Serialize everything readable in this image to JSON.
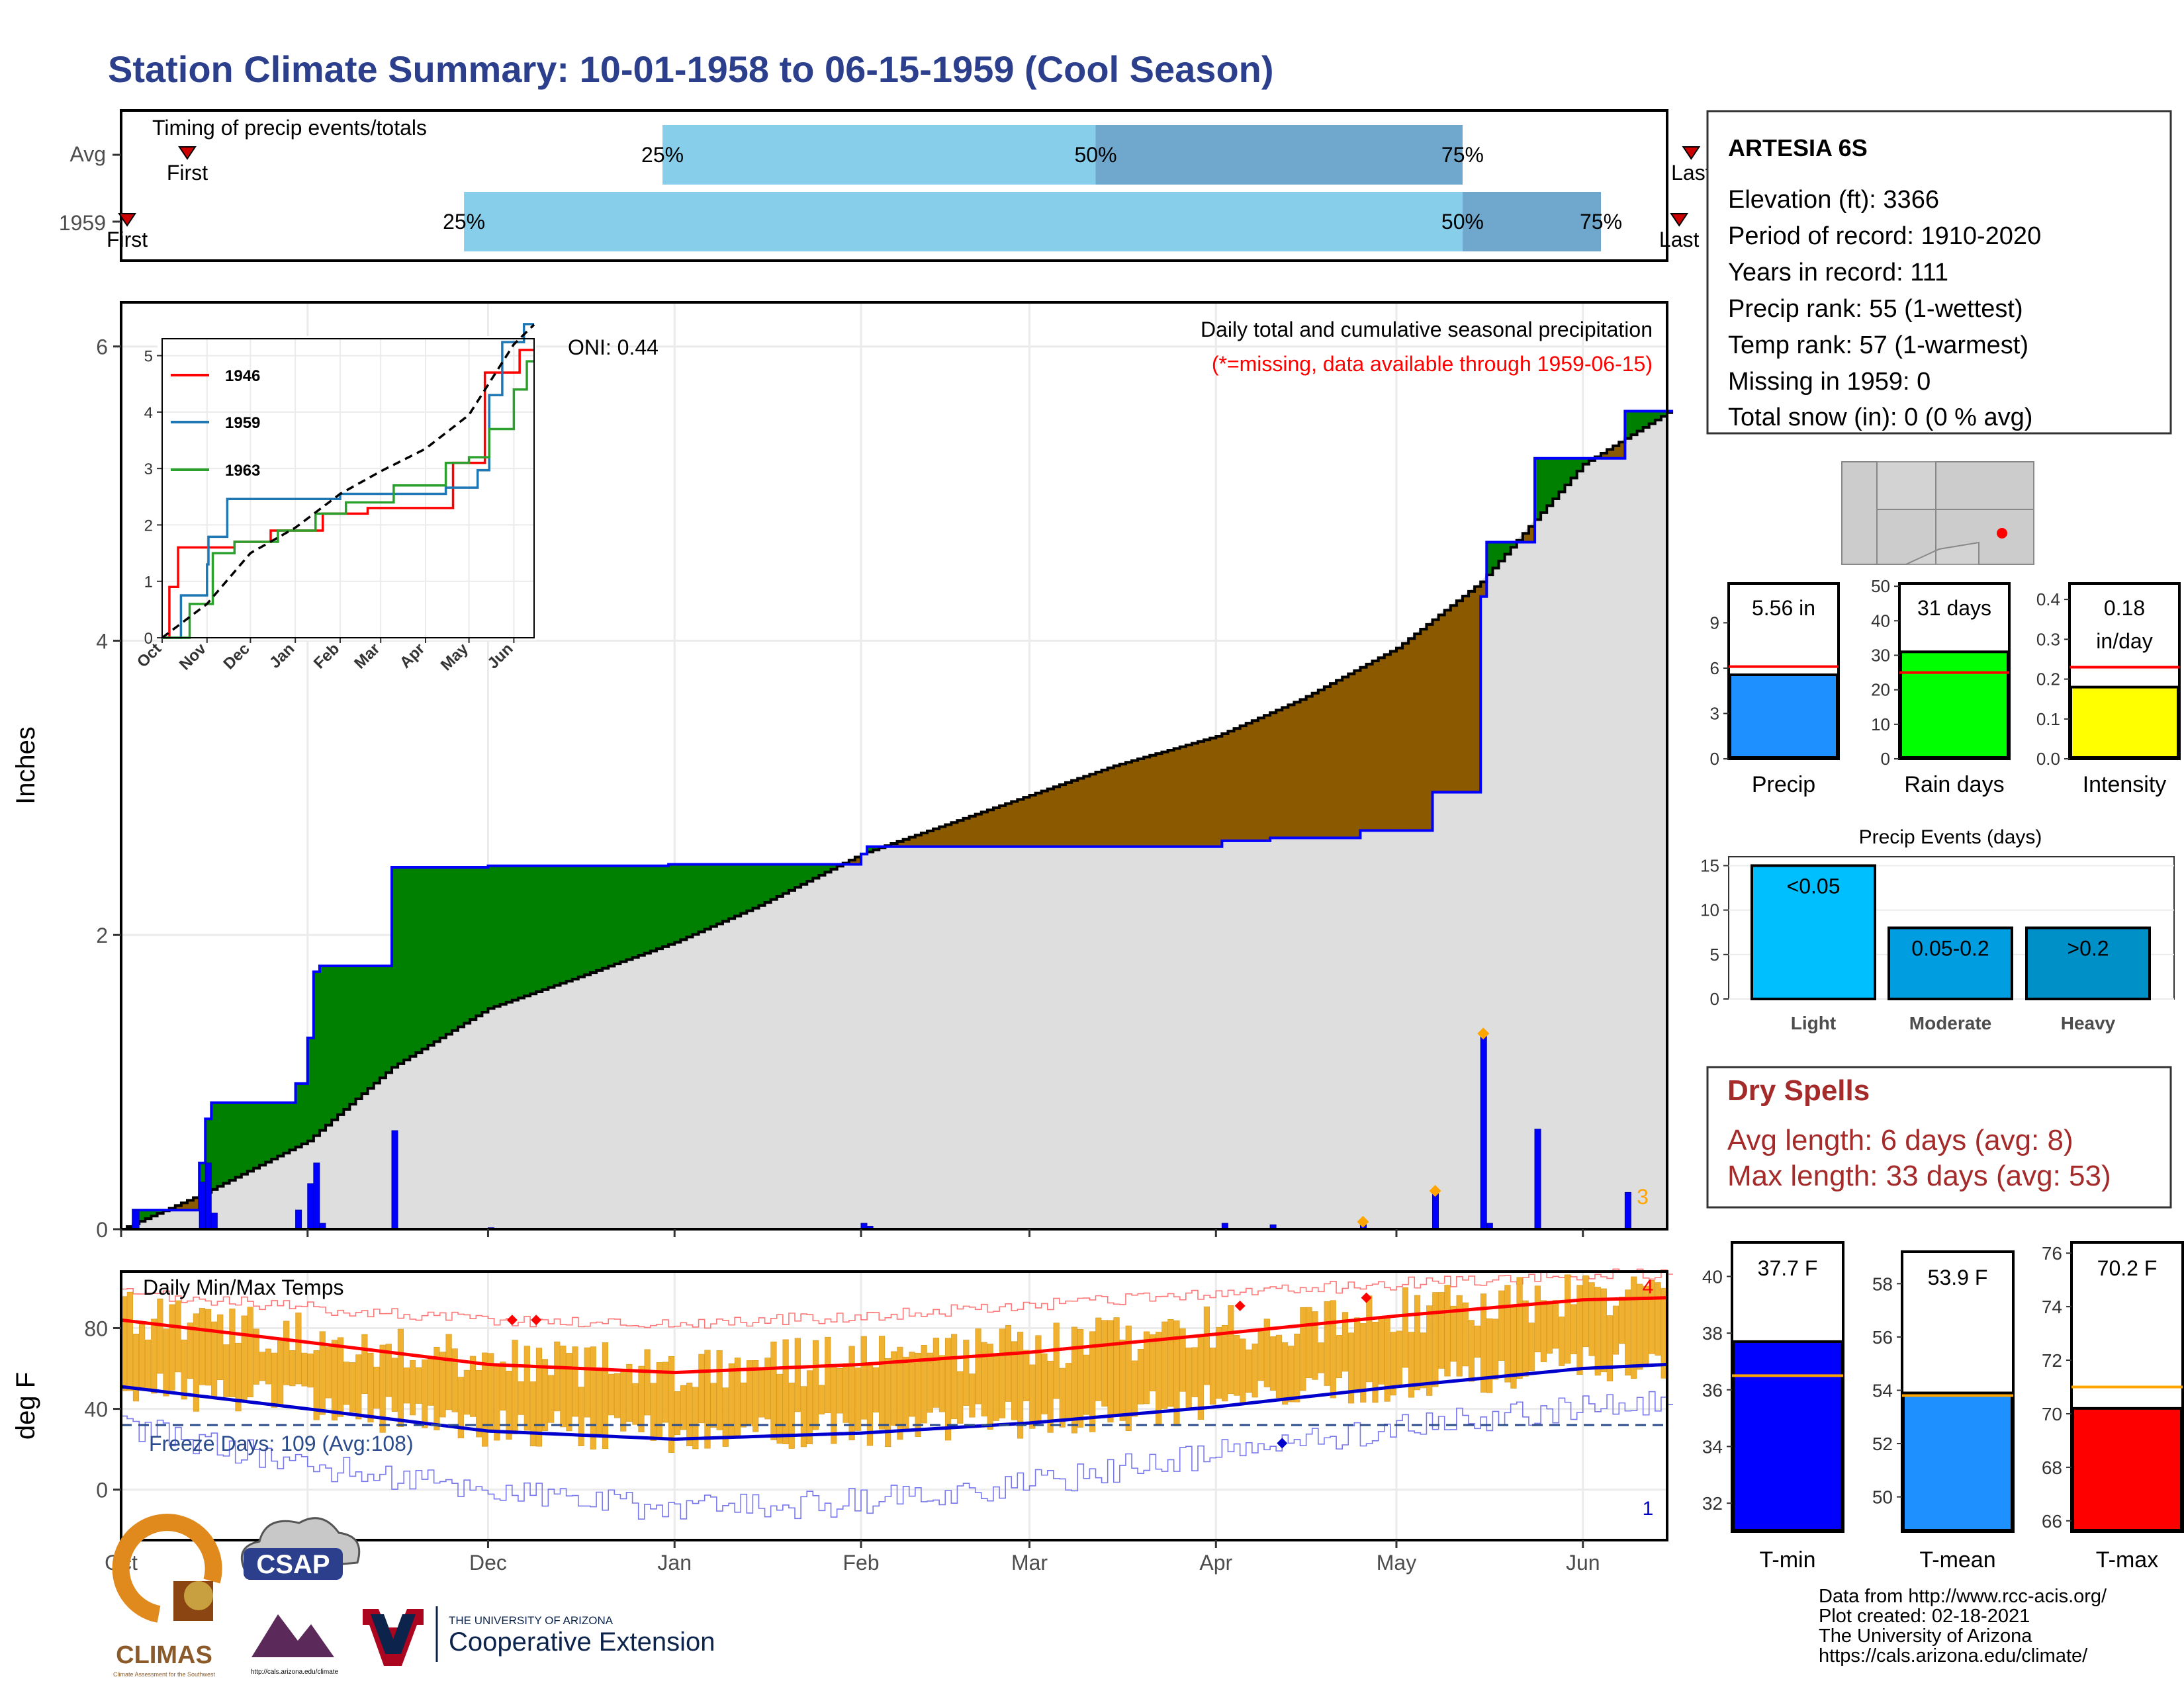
{
  "page": {
    "title": "Station Climate Summary: 10-01-1958 to 06-15-1959 (Cool Season)",
    "footer": [
      "Data from http://www.rcc-acis.org/",
      "Plot created: 02-18-2021",
      "The University of Arizona",
      "https://cals.arizona.edu/climate/"
    ],
    "logos": {
      "climas": "CLIMAS",
      "climas_sub": "Climate Assessment for the Southwest",
      "csap": "CSAP",
      "csap_sub": "http://cals.arizona.edu/climate",
      "ua_top": "THE UNIVERSITY OF ARIZONA",
      "ua_bottom": "Cooperative Extension"
    }
  },
  "station_box": {
    "name": "ARTESIA 6S",
    "lines": [
      "Elevation (ft): 3366",
      "Period of record: 1910-2020",
      "Years in record: 111",
      "Precip rank: 55 (1-wettest)",
      "Temp rank: 57 (1-warmest)",
      "Missing in 1959: 0",
      "Total snow (in): 0 (0 % avg)"
    ]
  },
  "dry_spells": {
    "title": "Dry Spells",
    "avg": "Avg length: 6 days (avg: 8)",
    "max": "Max length: 33 days (avg: 53)"
  },
  "colors": {
    "title_blue": "#2b3f8c",
    "light_blue": "#87ceeb",
    "mid_blue": "#6fa8cc",
    "green_fill": "#008000",
    "brown_fill": "#8b5a00",
    "gray_fill": "#dedede",
    "bar_blue": "#0000ff",
    "temp_bar": "#f0b030",
    "tmax_line": "#ff0000",
    "tmin_line": "#0000cc",
    "dry_red": "#a52a2a"
  },
  "chart_data": [
    {
      "id": "timing",
      "type": "bar",
      "title": "Timing of precip events/totals",
      "categories": [
        "Avg",
        "1959"
      ],
      "x_domain": [
        "1958-10-01",
        "1959-06-15"
      ],
      "rows": [
        {
          "label": "Avg",
          "first": "1958-10-12",
          "p25": "1958-12-30",
          "p50": "1959-03-12",
          "p75": "1959-05-12",
          "last": "1959-06-19",
          "labels": {
            "first": "First",
            "p25": "25%",
            "p50": "50%",
            "p75": "75%",
            "last": "Last"
          }
        },
        {
          "label": "1959",
          "first": "1958-10-02",
          "p25": "1958-11-27",
          "p50": "1959-05-12",
          "p75": "1959-06-04",
          "last": "1959-06-17",
          "labels": {
            "first": "First",
            "p25": "25%",
            "p50": "50%",
            "p75": "75%",
            "last": "Last"
          }
        }
      ]
    },
    {
      "id": "cumulative_precip",
      "type": "area",
      "title": "Daily total and cumulative seasonal precipitation",
      "subtitle": "(*=missing, data available through 1959-06-15)",
      "oni": "ONI: 0.44",
      "ylabel": "Inches",
      "ylim": [
        0,
        6.3
      ],
      "yticks": [
        0,
        2,
        4,
        6
      ],
      "x_domain": [
        "1958-10-01",
        "1959-06-15"
      ],
      "xticks": [
        "Oct",
        "Nov",
        "Dec",
        "Jan",
        "Feb",
        "Mar",
        "Apr",
        "May",
        "Jun"
      ],
      "corner_count": "3",
      "average_cumulative": [
        [
          "1958-10-01",
          0
        ],
        [
          "1958-10-15",
          0.25
        ],
        [
          "1958-11-01",
          0.6
        ],
        [
          "1958-11-15",
          1.1
        ],
        [
          "1958-12-01",
          1.5
        ],
        [
          "1958-12-15",
          1.7
        ],
        [
          "1959-01-01",
          1.95
        ],
        [
          "1959-01-15",
          2.2
        ],
        [
          "1959-02-01",
          2.55
        ],
        [
          "1959-02-15",
          2.75
        ],
        [
          "1959-03-01",
          2.95
        ],
        [
          "1959-03-15",
          3.15
        ],
        [
          "1959-04-01",
          3.35
        ],
        [
          "1959-04-15",
          3.6
        ],
        [
          "1959-05-01",
          3.95
        ],
        [
          "1959-05-15",
          4.4
        ],
        [
          "1959-06-01",
          5.2
        ],
        [
          "1959-06-15",
          5.55
        ]
      ],
      "year_cumulative": [
        [
          "1958-10-01",
          0
        ],
        [
          "1958-10-03",
          0.13
        ],
        [
          "1958-10-13",
          0.13
        ],
        [
          "1958-10-14",
          0.45
        ],
        [
          "1958-10-15",
          0.75
        ],
        [
          "1958-10-16",
          0.86
        ],
        [
          "1958-10-29",
          0.86
        ],
        [
          "1958-10-30",
          0.99
        ],
        [
          "1958-11-01",
          1.3
        ],
        [
          "1958-11-02",
          1.75
        ],
        [
          "1958-11-03",
          1.79
        ],
        [
          "1958-11-14",
          1.79
        ],
        [
          "1958-11-15",
          2.46
        ],
        [
          "1958-12-01",
          2.47
        ],
        [
          "1958-12-31",
          2.48
        ],
        [
          "1959-02-01",
          2.55
        ],
        [
          "1959-02-02",
          2.6
        ],
        [
          "1959-04-01",
          2.6
        ],
        [
          "1959-04-02",
          2.64
        ],
        [
          "1959-04-10",
          2.66
        ],
        [
          "1959-04-25",
          2.71
        ],
        [
          "1959-05-07",
          2.97
        ],
        [
          "1959-05-15",
          4.3
        ],
        [
          "1959-05-16",
          4.67
        ],
        [
          "1959-05-24",
          5.24
        ],
        [
          "1959-06-08",
          5.56
        ],
        [
          "1959-06-15",
          5.56
        ]
      ],
      "daily_precip": [
        [
          "1958-10-03",
          0.13
        ],
        [
          "1958-10-14",
          0.32
        ],
        [
          "1958-10-15",
          0.45
        ],
        [
          "1958-10-16",
          0.11
        ],
        [
          "1958-10-30",
          0.13
        ],
        [
          "1958-11-01",
          0.31
        ],
        [
          "1958-11-02",
          0.45
        ],
        [
          "1958-11-03",
          0.04
        ],
        [
          "1958-11-15",
          0.67
        ],
        [
          "1958-12-01",
          0.01
        ],
        [
          "1959-02-01",
          0.04
        ],
        [
          "1959-02-02",
          0.02
        ],
        [
          "1959-04-02",
          0.04
        ],
        [
          "1959-04-10",
          0.03
        ],
        [
          "1959-04-25",
          0.05
        ],
        [
          "1959-05-07",
          0.26
        ],
        [
          "1959-05-15",
          1.33
        ],
        [
          "1959-05-16",
          0.04
        ],
        [
          "1959-05-24",
          0.68
        ],
        [
          "1959-06-08",
          0.25
        ]
      ],
      "record_markers": [
        [
          "1959-04-25",
          0.05
        ],
        [
          "1959-05-07",
          0.26
        ],
        [
          "1959-05-15",
          1.33
        ]
      ]
    },
    {
      "id": "inset_cumulative",
      "type": "line",
      "x_domain": [
        "1958-10-01",
        "1959-06-15"
      ],
      "xticks": [
        "Oct",
        "Nov",
        "Dec",
        "Jan",
        "Feb",
        "Mar",
        "Apr",
        "May",
        "Jun"
      ],
      "ylim": [
        0,
        5.3
      ],
      "yticks": [
        0,
        1,
        2,
        3,
        4,
        5
      ],
      "series": [
        {
          "name": "1946",
          "color": "#ff0000",
          "points": [
            [
              "1958-10-01",
              0
            ],
            [
              "1958-10-06",
              0.9
            ],
            [
              "1958-10-12",
              1.6
            ],
            [
              "1958-11-15",
              1.6
            ],
            [
              "1958-11-20",
              1.7
            ],
            [
              "1958-12-15",
              1.9
            ],
            [
              "1959-01-20",
              2.2
            ],
            [
              "1959-02-20",
              2.3
            ],
            [
              "1959-03-01",
              2.3
            ],
            [
              "1959-04-15",
              2.3
            ],
            [
              "1959-04-20",
              3.1
            ],
            [
              "1959-05-10",
              3.1
            ],
            [
              "1959-05-12",
              4.7
            ],
            [
              "1959-06-01",
              4.7
            ],
            [
              "1959-06-05",
              5.1
            ],
            [
              "1959-06-15",
              5.1
            ]
          ]
        },
        {
          "name": "1959",
          "color": "#1f77b4",
          "points": [
            [
              "1958-10-01",
              0
            ],
            [
              "1958-10-14",
              0.75
            ],
            [
              "1958-11-01",
              1.3
            ],
            [
              "1958-11-02",
              1.79
            ],
            [
              "1958-11-15",
              2.46
            ],
            [
              "1959-02-01",
              2.55
            ],
            [
              "1959-04-15",
              2.66
            ],
            [
              "1959-05-07",
              2.97
            ],
            [
              "1959-05-15",
              4.3
            ],
            [
              "1959-05-24",
              5.24
            ],
            [
              "1959-06-08",
              5.56
            ],
            [
              "1959-06-15",
              5.56
            ]
          ]
        },
        {
          "name": "1963",
          "color": "#2ca02c",
          "points": [
            [
              "1958-10-01",
              0
            ],
            [
              "1958-10-20",
              0.6
            ],
            [
              "1958-11-05",
              1.5
            ],
            [
              "1958-11-20",
              1.7
            ],
            [
              "1958-12-20",
              1.9
            ],
            [
              "1959-01-15",
              2.2
            ],
            [
              "1959-02-05",
              2.4
            ],
            [
              "1959-03-10",
              2.7
            ],
            [
              "1959-04-15",
              3.1
            ],
            [
              "1959-05-01",
              3.2
            ],
            [
              "1959-05-15",
              3.7
            ],
            [
              "1959-06-01",
              4.4
            ],
            [
              "1959-06-10",
              4.9
            ],
            [
              "1959-06-15",
              4.9
            ]
          ]
        },
        {
          "name": "",
          "color": "#000000",
          "dashed": true,
          "points": [
            [
              "1958-10-01",
              0
            ],
            [
              "1958-11-01",
              0.6
            ],
            [
              "1958-12-01",
              1.5
            ],
            [
              "1959-01-01",
              1.95
            ],
            [
              "1959-02-01",
              2.55
            ],
            [
              "1959-03-01",
              2.95
            ],
            [
              "1959-04-01",
              3.35
            ],
            [
              "1959-05-01",
              3.95
            ],
            [
              "1959-06-01",
              5.2
            ],
            [
              "1959-06-15",
              5.55
            ]
          ]
        }
      ]
    },
    {
      "id": "daily_temps",
      "type": "bar",
      "title": "Daily Min/Max Temps",
      "ylabel": "deg F",
      "ylim": [
        -25,
        108
      ],
      "yticks": [
        0,
        40,
        80
      ],
      "freeze_line": 32,
      "freeze_text": "Freeze Days: 109 (Avg:108)",
      "x_domain": [
        "1958-10-01",
        "1959-06-15"
      ],
      "xticks": [
        "Oct",
        "Nov",
        "Dec",
        "Jan",
        "Feb",
        "Mar",
        "Apr",
        "May",
        "Jun"
      ],
      "record_high_count": "4",
      "record_low_count": "1",
      "avg_max_anchors": [
        [
          "1958-10-01",
          84
        ],
        [
          "1958-11-01",
          73
        ],
        [
          "1958-12-01",
          62
        ],
        [
          "1959-01-01",
          58
        ],
        [
          "1959-02-01",
          62
        ],
        [
          "1959-03-01",
          68
        ],
        [
          "1959-04-01",
          77
        ],
        [
          "1959-05-01",
          86
        ],
        [
          "1959-06-01",
          94
        ],
        [
          "1959-06-15",
          95
        ]
      ],
      "avg_min_anchors": [
        [
          "1958-10-01",
          51
        ],
        [
          "1958-11-01",
          40
        ],
        [
          "1958-12-01",
          29
        ],
        [
          "1959-01-01",
          25
        ],
        [
          "1959-02-01",
          28
        ],
        [
          "1959-03-01",
          33
        ],
        [
          "1959-04-01",
          41
        ],
        [
          "1959-05-01",
          51
        ],
        [
          "1959-06-01",
          60
        ],
        [
          "1959-06-15",
          62
        ]
      ],
      "rec_max_anchors": [
        [
          "1958-10-01",
          97
        ],
        [
          "1958-11-01",
          90
        ],
        [
          "1958-12-01",
          84
        ],
        [
          "1959-01-01",
          82
        ],
        [
          "1959-02-01",
          86
        ],
        [
          "1959-03-01",
          91
        ],
        [
          "1959-04-01",
          97
        ],
        [
          "1959-05-01",
          102
        ],
        [
          "1959-06-01",
          106
        ],
        [
          "1959-06-15",
          107
        ]
      ],
      "rec_min_anchors": [
        [
          "1958-10-01",
          32
        ],
        [
          "1958-11-01",
          12
        ],
        [
          "1958-12-01",
          0
        ],
        [
          "1959-01-01",
          -10
        ],
        [
          "1959-02-01",
          -6
        ],
        [
          "1959-03-01",
          3
        ],
        [
          "1959-04-01",
          18
        ],
        [
          "1959-05-01",
          31
        ],
        [
          "1959-06-01",
          40
        ],
        [
          "1959-06-15",
          44
        ]
      ],
      "record_high_markers": [
        [
          "1958-12-05",
          84
        ],
        [
          "1958-12-09",
          84
        ],
        [
          "1959-04-05",
          91
        ],
        [
          "1959-04-26",
          95
        ]
      ],
      "record_low_markers": [
        [
          "1959-04-12",
          23
        ]
      ]
    },
    {
      "id": "precip_totals",
      "type": "bar",
      "categories": [
        "Precip",
        "Rain days",
        "Intensity"
      ],
      "panels": [
        {
          "label": "Precip",
          "value": 5.56,
          "avg": 6.1,
          "ylim": [
            0,
            11.6
          ],
          "yticks": [
            0,
            3,
            6,
            9
          ],
          "value_text": [
            "5.56 in"
          ],
          "color": "#1e90ff"
        },
        {
          "label": "Rain days",
          "value": 31,
          "avg": 25,
          "ylim": [
            0,
            50.8
          ],
          "yticks": [
            0,
            10,
            20,
            30,
            40,
            50
          ],
          "value_text": [
            "31 days"
          ],
          "color": "#00ff00"
        },
        {
          "label": "Intensity",
          "value": 0.18,
          "avg": 0.23,
          "ylim": [
            0,
            0.44
          ],
          "yticks": [
            0.0,
            0.1,
            0.2,
            0.3,
            0.4
          ],
          "value_text": [
            "0.18",
            "in/day"
          ],
          "color": "#ffff00"
        }
      ]
    },
    {
      "id": "precip_events",
      "type": "bar",
      "title": "Precip Events (days)",
      "categories": [
        "Light",
        "Moderate",
        "Heavy"
      ],
      "values": [
        15,
        8,
        8
      ],
      "bar_labels": [
        "<0.05",
        "0.05-0.2",
        ">0.2"
      ],
      "colors": [
        "#00bfff",
        "#009ee0",
        "#0090c8"
      ],
      "ylim": [
        0,
        16
      ],
      "yticks": [
        0,
        5,
        10,
        15
      ]
    },
    {
      "id": "temp_totals",
      "type": "bar",
      "categories": [
        "T-min",
        "T-mean",
        "T-max"
      ],
      "panels": [
        {
          "label": "T-min",
          "value": 37.7,
          "avg": 36.5,
          "ylim": [
            31,
            41.2
          ],
          "yticks": [
            32,
            34,
            36,
            38,
            40
          ],
          "value_text": "37.7 F",
          "color": "#0000ff"
        },
        {
          "label": "T-mean",
          "value": 53.9,
          "avg": 53.8,
          "ylim": [
            48.7,
            59.2
          ],
          "yticks": [
            50,
            52,
            54,
            56,
            58
          ],
          "value_text": "53.9 F",
          "color": "#1e90ff"
        },
        {
          "label": "T-max",
          "value": 70.2,
          "avg": 71.0,
          "ylim": [
            65.6,
            76.4
          ],
          "yticks": [
            66,
            68,
            70,
            72,
            74,
            76
          ],
          "value_text": "70.2 F",
          "color": "#ff0000"
        }
      ]
    }
  ]
}
